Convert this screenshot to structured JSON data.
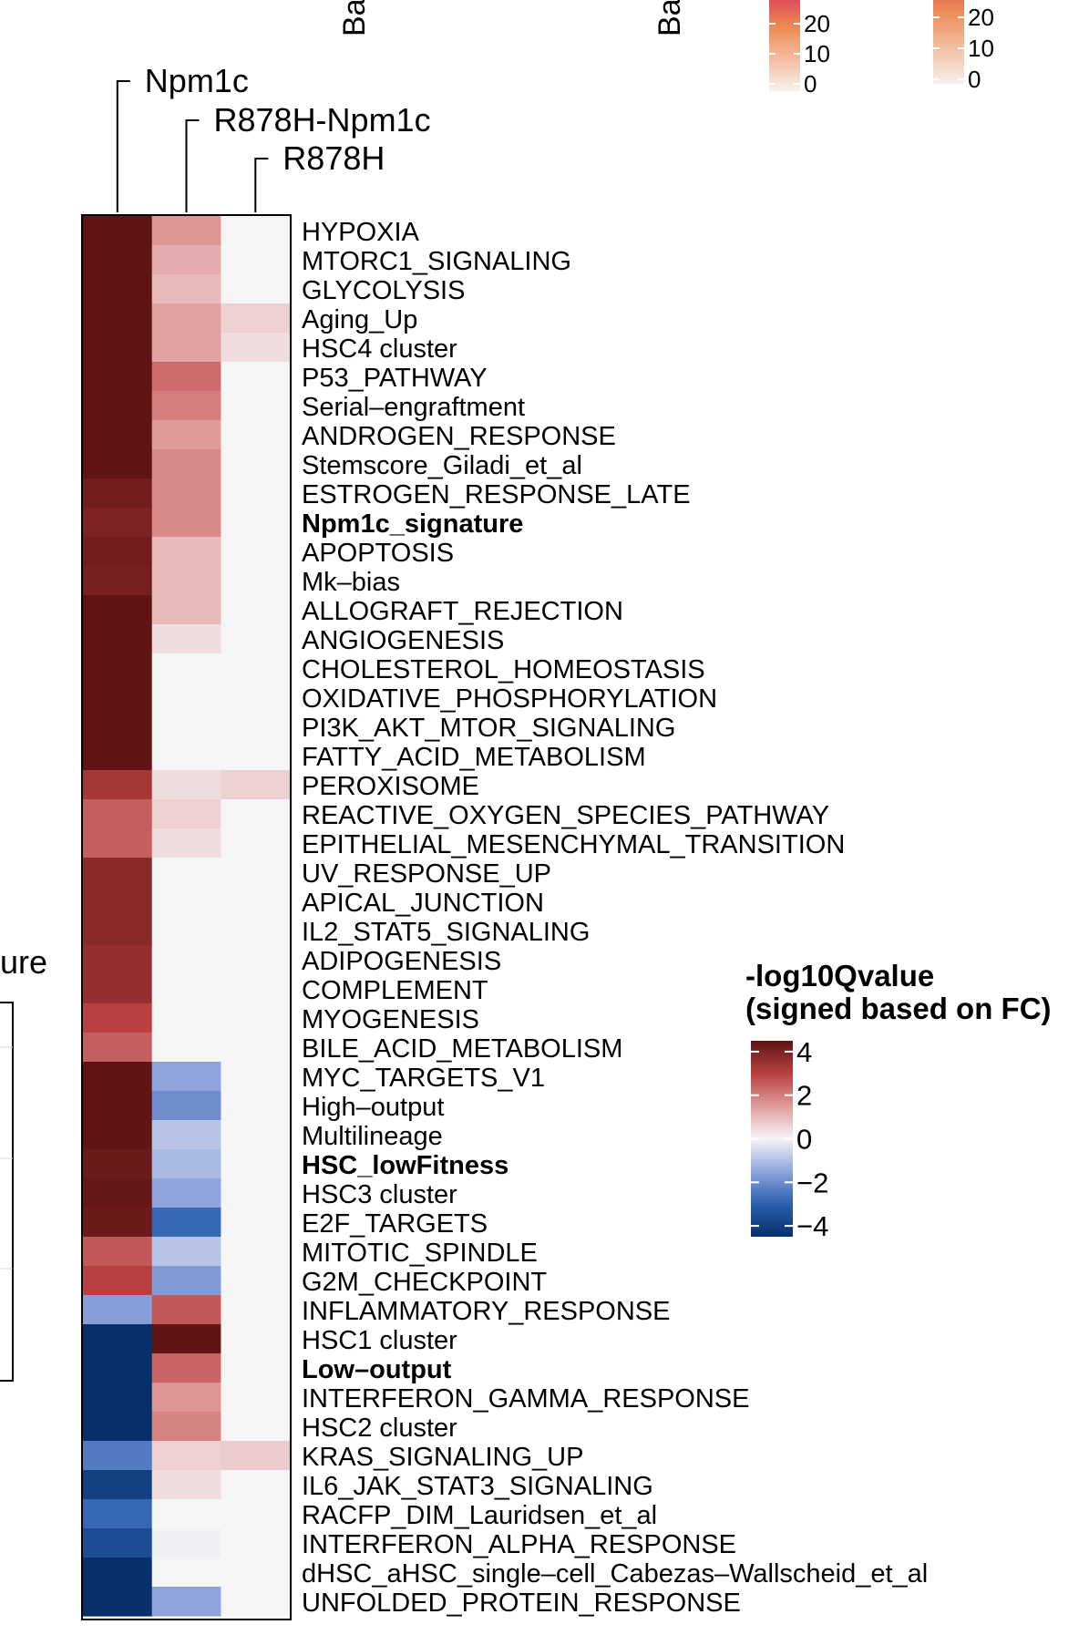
{
  "chart_data": {
    "type": "heatmap",
    "title": "",
    "columns": [
      "Npm1c",
      "R878H-Npm1c",
      "R878H"
    ],
    "rows": [
      {
        "label": "HYPOXIA",
        "bold": false,
        "values": [
          4.5,
          1.6,
          0
        ]
      },
      {
        "label": "MTORC1_SIGNALING",
        "bold": false,
        "values": [
          4.5,
          1.2,
          0
        ]
      },
      {
        "label": "GLYCOLYSIS",
        "bold": false,
        "values": [
          4.5,
          1.0,
          0
        ]
      },
      {
        "label": "Aging_Up",
        "bold": false,
        "values": [
          4.5,
          1.4,
          0.6
        ]
      },
      {
        "label": "HSC4 cluster",
        "bold": false,
        "values": [
          4.5,
          1.4,
          0.4
        ]
      },
      {
        "label": "P53_PATHWAY",
        "bold": false,
        "values": [
          4.5,
          2.3,
          0
        ]
      },
      {
        "label": "Serial–engraftment",
        "bold": false,
        "values": [
          4.5,
          2.0,
          0
        ]
      },
      {
        "label": "ANDROGEN_RESPONSE",
        "bold": false,
        "values": [
          4.5,
          1.5,
          0
        ]
      },
      {
        "label": "Stemscore_Giladi_et_al",
        "bold": false,
        "values": [
          4.5,
          1.8,
          0
        ]
      },
      {
        "label": "ESTROGEN_RESPONSE_LATE",
        "bold": false,
        "values": [
          4.2,
          1.8,
          0
        ]
      },
      {
        "label": "Npm1c_signature",
        "bold": true,
        "values": [
          4.0,
          1.8,
          0
        ]
      },
      {
        "label": "APOPTOSIS",
        "bold": false,
        "values": [
          4.2,
          1.0,
          0
        ]
      },
      {
        "label": "Mk–bias",
        "bold": false,
        "values": [
          4.1,
          1.0,
          0
        ]
      },
      {
        "label": "ALLOGRAFT_REJECTION",
        "bold": false,
        "values": [
          4.5,
          1.0,
          0
        ]
      },
      {
        "label": "ANGIOGENESIS",
        "bold": false,
        "values": [
          4.5,
          0.4,
          0
        ]
      },
      {
        "label": "CHOLESTEROL_HOMEOSTASIS",
        "bold": false,
        "values": [
          4.5,
          0,
          0
        ]
      },
      {
        "label": "OXIDATIVE_PHOSPHORYLATION",
        "bold": false,
        "values": [
          4.5,
          0,
          0
        ]
      },
      {
        "label": "PI3K_AKT_MTOR_SIGNALING",
        "bold": false,
        "values": [
          4.5,
          0,
          0
        ]
      },
      {
        "label": "FATTY_ACID_METABOLISM",
        "bold": false,
        "values": [
          4.5,
          0,
          0
        ]
      },
      {
        "label": "PEROXISOME",
        "bold": false,
        "values": [
          3.3,
          0.4,
          0.6
        ]
      },
      {
        "label": "REACTIVE_OXYGEN_SPECIES_PATHWAY",
        "bold": false,
        "values": [
          2.5,
          0.6,
          0
        ]
      },
      {
        "label": "EPITHELIAL_MESENCHYMAL_TRANSITION",
        "bold": false,
        "values": [
          2.5,
          0.4,
          0
        ]
      },
      {
        "label": "UV_RESPONSE_UP",
        "bold": false,
        "values": [
          3.8,
          0,
          0
        ]
      },
      {
        "label": "APICAL_JUNCTION",
        "bold": false,
        "values": [
          3.8,
          0,
          0
        ]
      },
      {
        "label": "IL2_STAT5_SIGNALING",
        "bold": false,
        "values": [
          3.8,
          0,
          0
        ]
      },
      {
        "label": "ADIPOGENESIS",
        "bold": false,
        "values": [
          3.6,
          0,
          0
        ]
      },
      {
        "label": "COMPLEMENT",
        "bold": false,
        "values": [
          3.6,
          0,
          0
        ]
      },
      {
        "label": "MYOGENESIS",
        "bold": false,
        "values": [
          3.0,
          0,
          0
        ]
      },
      {
        "label": "BILE_ACID_METABOLISM",
        "bold": false,
        "values": [
          2.5,
          0,
          0
        ]
      },
      {
        "label": "MYC_TARGETS_V1",
        "bold": false,
        "values": [
          4.5,
          -1.5,
          0
        ]
      },
      {
        "label": "High–output",
        "bold": false,
        "values": [
          4.5,
          -2.0,
          0
        ]
      },
      {
        "label": "Multilineage",
        "bold": false,
        "values": [
          4.5,
          -0.9,
          0
        ]
      },
      {
        "label": "HSC_lowFitness",
        "bold": true,
        "values": [
          4.3,
          -1.1,
          0
        ]
      },
      {
        "label": "HSC3 cluster",
        "bold": false,
        "values": [
          4.4,
          -1.5,
          0
        ]
      },
      {
        "label": "E2F_TARGETS",
        "bold": false,
        "values": [
          4.3,
          -2.8,
          0
        ]
      },
      {
        "label": "MITOTIC_SPINDLE",
        "bold": false,
        "values": [
          2.6,
          -0.9,
          0
        ]
      },
      {
        "label": "G2M_CHECKPOINT",
        "bold": false,
        "values": [
          3.0,
          -1.7,
          0
        ]
      },
      {
        "label": "INFLAMMATORY_RESPONSE",
        "bold": false,
        "values": [
          -1.6,
          2.6,
          0
        ]
      },
      {
        "label": "HSC1 cluster",
        "bold": false,
        "values": [
          -4.5,
          4.5,
          0
        ]
      },
      {
        "label": "Low–output",
        "bold": true,
        "values": [
          -4.5,
          2.4,
          0
        ]
      },
      {
        "label": "INTERFERON_GAMMA_RESPONSE",
        "bold": false,
        "values": [
          -4.5,
          1.6,
          0
        ]
      },
      {
        "label": "HSC2 cluster",
        "bold": false,
        "values": [
          -4.5,
          1.9,
          0
        ]
      },
      {
        "label": "KRAS_SIGNALING_UP",
        "bold": false,
        "values": [
          -2.4,
          0.6,
          0.7
        ]
      },
      {
        "label": "IL6_JAK_STAT3_SIGNALING",
        "bold": false,
        "values": [
          -4.0,
          0.4,
          0
        ]
      },
      {
        "label": "RACFP_DIM_Lauridsen_et_al",
        "bold": false,
        "values": [
          -2.8,
          0,
          0
        ]
      },
      {
        "label": "INTERFERON_ALPHA_RESPONSE",
        "bold": false,
        "values": [
          -3.6,
          -0.1,
          0
        ]
      },
      {
        "label": "dHSC_aHSC_single–cell_Cabezas–Wallscheid_et_al",
        "bold": false,
        "values": [
          -4.5,
          0,
          0
        ]
      },
      {
        "label": "UNFOLDED_PROTEIN_RESPONSE",
        "bold": false,
        "values": [
          -4.5,
          -1.5,
          0
        ]
      }
    ],
    "color_scale": {
      "title_line1": "-log10Qvalue",
      "title_line2": "(signed based on FC)",
      "range": [
        -4.5,
        4.5
      ],
      "ticks": [
        {
          "value": 4,
          "label": "4"
        },
        {
          "value": 2,
          "label": "2"
        },
        {
          "value": 0,
          "label": "0"
        },
        {
          "value": -2,
          "label": "−2"
        },
        {
          "value": -4,
          "label": "−4"
        }
      ],
      "stops": [
        {
          "v": -4.5,
          "c": "#06306a"
        },
        {
          "v": -3,
          "c": "#2a5fb0"
        },
        {
          "v": -1.5,
          "c": "#8ea4db"
        },
        {
          "v": 0,
          "c": "#f5f5f5"
        },
        {
          "v": 1.5,
          "c": "#e09b9b"
        },
        {
          "v": 3,
          "c": "#b84040"
        },
        {
          "v": 4.5,
          "c": "#601414"
        }
      ]
    },
    "partial_top_legends": [
      {
        "stops": [
          "#f7f1ec",
          "#ee8a55",
          "#c0005a"
        ],
        "ticks": [
          {
            "value": 20,
            "label": "20"
          },
          {
            "value": 10,
            "label": "10"
          },
          {
            "value": 0,
            "label": "0"
          }
        ]
      },
      {
        "stops": [
          "#f7f1ec",
          "#ee8a55",
          "#c0005a"
        ],
        "ticks": [
          {
            "value": 20,
            "label": "20"
          },
          {
            "value": 10,
            "label": "10"
          },
          {
            "value": 0,
            "label": "0"
          }
        ]
      }
    ],
    "partial_texts": {
      "annotation_1": "Ba",
      "annotation_2": "Ba",
      "left_fragment": "ure"
    }
  }
}
